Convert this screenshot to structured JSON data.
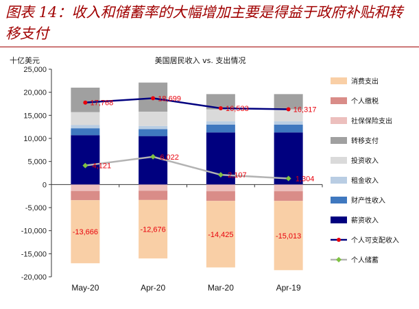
{
  "figure_title": "图表 14：收入和储蓄率的大幅增加主要是得益于政府补贴和转移支付",
  "colors": {
    "title": "#a00000",
    "消费支出": "#f9cfa6",
    "个人缴税": "#d98c88",
    "社保保险支出": "#ecbfbd",
    "转移支付": "#a0a0a0",
    "投资收入": "#dadada",
    "租金收入": "#b9cde3",
    "财产性收入": "#3f78bf",
    "薪资收入": "#00007f",
    "个人可支配收入": "#00007f",
    "个人储蓄": "#b3b3b3",
    "label": "#e8000b"
  },
  "chart_data": {
    "type": "bar",
    "title": "美国居民收入 vs. 支出情况",
    "ylabel": "十亿美元",
    "xlabel": "",
    "ylim": [
      -20000,
      25000
    ],
    "yticks": [
      "25,000",
      "20,000",
      "15,000",
      "10,000",
      "5,000",
      "0",
      "-5,000",
      "-10,000",
      "-15,000",
      "-20,000"
    ],
    "categories": [
      "May-20",
      "Apr-20",
      "Mar-20",
      "Apr-19"
    ],
    "stacked_series": [
      {
        "name": "消费支出",
        "values": [
          -13666,
          -12676,
          -14425,
          -15013
        ]
      },
      {
        "name": "个人缴税",
        "values": [
          -2000,
          -2000,
          -2100,
          -2100
        ]
      },
      {
        "name": "社保保险支出",
        "values": [
          -1400,
          -1350,
          -1450,
          -1450
        ]
      },
      {
        "name": "转移支付",
        "values": [
          5300,
          6300,
          3300,
          3300
        ]
      },
      {
        "name": "投资收入",
        "values": [
          2800,
          3100,
          2600,
          2600
        ]
      },
      {
        "name": "租金收入",
        "values": [
          700,
          700,
          700,
          700
        ]
      },
      {
        "name": "财产性收入",
        "values": [
          1500,
          1500,
          1700,
          1700
        ]
      },
      {
        "name": "薪资收入",
        "values": [
          10700,
          10500,
          11300,
          11300
        ]
      }
    ],
    "line_series": [
      {
        "name": "个人可支配收入",
        "values": [
          17768,
          18699,
          16533,
          16317
        ],
        "labels": [
          "17,768",
          "18,699",
          "16,533",
          "16,317"
        ]
      },
      {
        "name": "个人储蓄",
        "values": [
          4121,
          6022,
          2107,
          1304
        ],
        "labels": [
          "4,121",
          "6,022",
          "2,107",
          "1,304"
        ]
      }
    ],
    "bar_labels": [
      "-13,666",
      "-12,676",
      "-14,425",
      "-15,013"
    ],
    "legend": [
      "消费支出",
      "个人缴税",
      "社保保险支出",
      "转移支付",
      "投资收入",
      "租金收入",
      "财产性收入",
      "薪资收入",
      "个人可支配收入",
      "个人储蓄"
    ],
    "legend_position": "right",
    "grid": false
  }
}
